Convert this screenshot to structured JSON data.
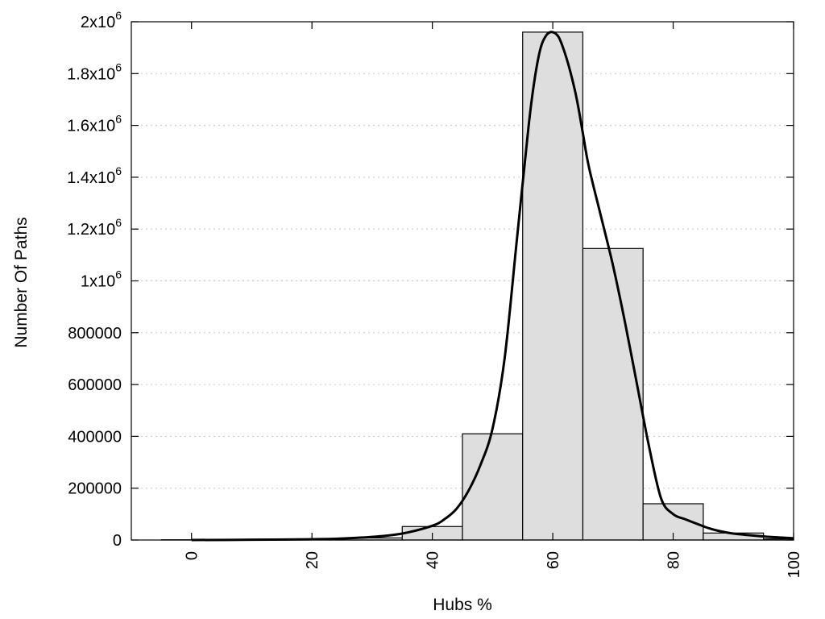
{
  "chart_data": {
    "type": "bar",
    "xlabel": "Hubs %",
    "ylabel": "Number Of Paths",
    "xlim": [
      -10,
      100
    ],
    "ylim": [
      0,
      2000000
    ],
    "grid": true,
    "x_ticks": [
      {
        "value": 0,
        "label": "0"
      },
      {
        "value": 20,
        "label": "20"
      },
      {
        "value": 40,
        "label": "40"
      },
      {
        "value": 60,
        "label": "60"
      },
      {
        "value": 80,
        "label": "80"
      },
      {
        "value": 100,
        "label": "100"
      }
    ],
    "y_ticks": [
      {
        "value": 0,
        "label": "0"
      },
      {
        "value": 200000,
        "label": "200000"
      },
      {
        "value": 400000,
        "label": "400000"
      },
      {
        "value": 600000,
        "label": "600000"
      },
      {
        "value": 800000,
        "label": "800000"
      },
      {
        "value": 1000000,
        "label": "1x10",
        "exp": "6"
      },
      {
        "value": 1200000,
        "label": "1.2x10",
        "exp": "6"
      },
      {
        "value": 1400000,
        "label": "1.4x10",
        "exp": "6"
      },
      {
        "value": 1600000,
        "label": "1.6x10",
        "exp": "6"
      },
      {
        "value": 1800000,
        "label": "1.8x10",
        "exp": "6"
      },
      {
        "value": 2000000,
        "label": "2x10",
        "exp": "6"
      }
    ],
    "bins": [
      {
        "center": 0,
        "value": 1000
      },
      {
        "center": 10,
        "value": 2000
      },
      {
        "center": 20,
        "value": 4000
      },
      {
        "center": 30,
        "value": 8000
      },
      {
        "center": 40,
        "value": 52000
      },
      {
        "center": 50,
        "value": 410000
      },
      {
        "center": 60,
        "value": 1960000
      },
      {
        "center": 70,
        "value": 1125000
      },
      {
        "center": 80,
        "value": 140000
      },
      {
        "center": 90,
        "value": 27000
      },
      {
        "center": 100,
        "value": 4000
      }
    ],
    "bin_width": 10,
    "curve": {
      "x": [
        0,
        10,
        20,
        25,
        30,
        35,
        40,
        42,
        44,
        46,
        48,
        50,
        52,
        54,
        56,
        57,
        58,
        59,
        60,
        61,
        62,
        63,
        64,
        65,
        66,
        68,
        70,
        72,
        74,
        76,
        78,
        80,
        82,
        84,
        86,
        88,
        90,
        93,
        96,
        100
      ],
      "y": [
        0,
        1000,
        3000,
        6000,
        12000,
        25000,
        55000,
        80000,
        120000,
        190000,
        290000,
        430000,
        700000,
        1150000,
        1600000,
        1780000,
        1900000,
        1950000,
        1960000,
        1940000,
        1880000,
        1800000,
        1700000,
        1570000,
        1440000,
        1250000,
        1060000,
        840000,
        600000,
        360000,
        160000,
        100000,
        80000,
        62000,
        45000,
        33000,
        25000,
        18000,
        12000,
        7000
      ]
    }
  }
}
